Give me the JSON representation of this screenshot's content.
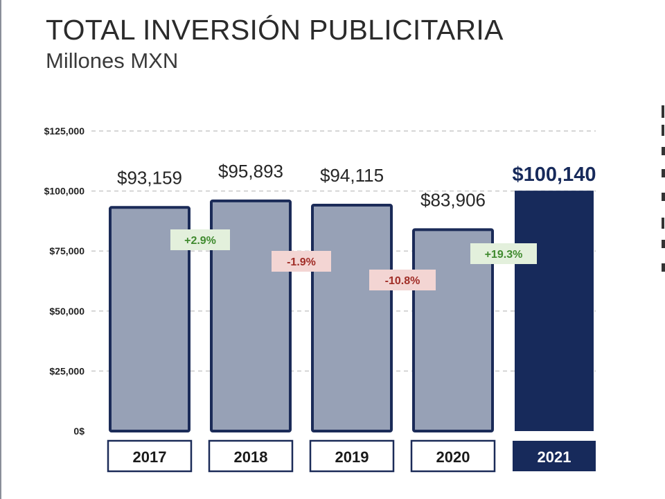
{
  "title": "TOTAL INVERSIÓN PUBLICITARIA",
  "subtitle": "Millones MXN",
  "colors": {
    "bar_fill": "#97a1b6",
    "bar_stroke": "#1b2b58",
    "highlight": "#172a5b",
    "positive_bg": "#e3f0dc",
    "positive_text": "#3f8a2e",
    "negative_bg": "#f3d5d3",
    "negative_text": "#a02d27",
    "grid": "#c9c9c9"
  },
  "chart_data": {
    "type": "bar",
    "categories": [
      "2017",
      "2018",
      "2019",
      "2020",
      "2021"
    ],
    "values": [
      93159,
      95893,
      94115,
      83906,
      100140
    ],
    "value_labels": [
      "$93,159",
      "$95,893",
      "$94,115",
      "$83,906",
      "$100,140"
    ],
    "highlight_index": 4,
    "ylim": [
      0,
      125000
    ],
    "yticks": [
      0,
      25000,
      50000,
      75000,
      100000,
      125000
    ],
    "ytick_labels": [
      "0$",
      "$25,000",
      "$50,000",
      "$75,000",
      "$100,000",
      "$125,000"
    ],
    "grid": true,
    "changes": [
      {
        "label": "+2.9%",
        "between": [
          0,
          1
        ],
        "sign": "positive"
      },
      {
        "label": "-1.9%",
        "between": [
          1,
          2
        ],
        "sign": "negative"
      },
      {
        "label": "-10.8%",
        "between": [
          2,
          3
        ],
        "sign": "negative"
      },
      {
        "label": "+19.3%",
        "between": [
          3,
          4
        ],
        "sign": "positive"
      }
    ]
  }
}
